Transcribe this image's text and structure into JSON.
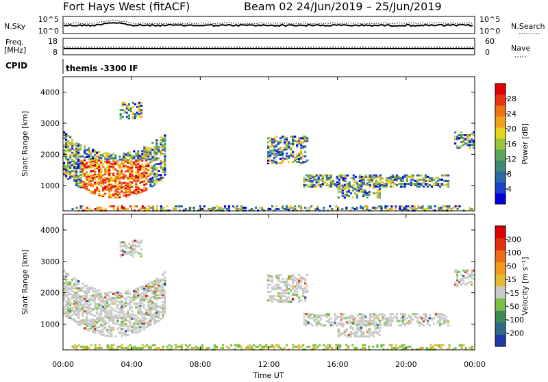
{
  "header": {
    "station": "Fort Hays West (fitACF)",
    "beam_date": "Beam 02  24/Jun/2019 – 25/Jun/2019"
  },
  "top_panels": {
    "nsky_label": "N.Sky",
    "nsky_ticks": [
      "10^5",
      "10^0"
    ],
    "nsearch_label": "N.Search",
    "nsearch_ticks": [
      "10^5",
      "10^0"
    ],
    "freq_label_1": "Freq.",
    "freq_label_2": "[MHz]",
    "freq_ticks": [
      "18",
      "8"
    ],
    "nave_label": "Nave",
    "nave_ticks": [
      "60",
      "0"
    ],
    "cpid_label": "CPID",
    "cpid_value": "themis -3300 IF"
  },
  "chart_data": [
    {
      "type": "heatmap",
      "name": "power-panel",
      "ylabel": "Slant Range [km]",
      "yticks": [
        "4000",
        "3000",
        "2000",
        "1000"
      ],
      "ylim": [
        180,
        4500
      ],
      "xlim": [
        0,
        24
      ],
      "colorbar_label": "Power [dB]",
      "colorbar_ticks": [
        "28",
        "24",
        "20",
        "16",
        "12",
        "8",
        "4"
      ],
      "colorbar_colors": [
        "#0000e0",
        "#1a3fd1",
        "#2a6aa6",
        "#3e8a73",
        "#5da657",
        "#9cc53c",
        "#e5d51c",
        "#f2a21a",
        "#f07414",
        "#ea3512",
        "#e00000"
      ]
    },
    {
      "type": "heatmap",
      "name": "velocity-panel",
      "ylabel": "Slant Range [km]",
      "yticks": [
        "4000",
        "3000",
        "2000",
        "1000"
      ],
      "ylim": [
        180,
        4500
      ],
      "xlim": [
        0,
        24
      ],
      "colorbar_label": "Velocity [m s⁻¹]",
      "colorbar_ticks": [
        "200",
        "100",
        "50",
        "15",
        "-15",
        "-50",
        "-100",
        "-200"
      ],
      "colorbar_colors": [
        "#1f3aa6",
        "#2e6b8a",
        "#3d8a52",
        "#7ac042",
        "#c9c9c9",
        "#e6b933",
        "#f29a1a",
        "#ef6a14",
        "#e53010",
        "#e00000"
      ]
    }
  ],
  "xaxis": {
    "ticks": [
      "00:00",
      "04:00",
      "08:00",
      "12:00",
      "16:00",
      "20:00",
      "00:00"
    ],
    "label": "Time UT"
  }
}
